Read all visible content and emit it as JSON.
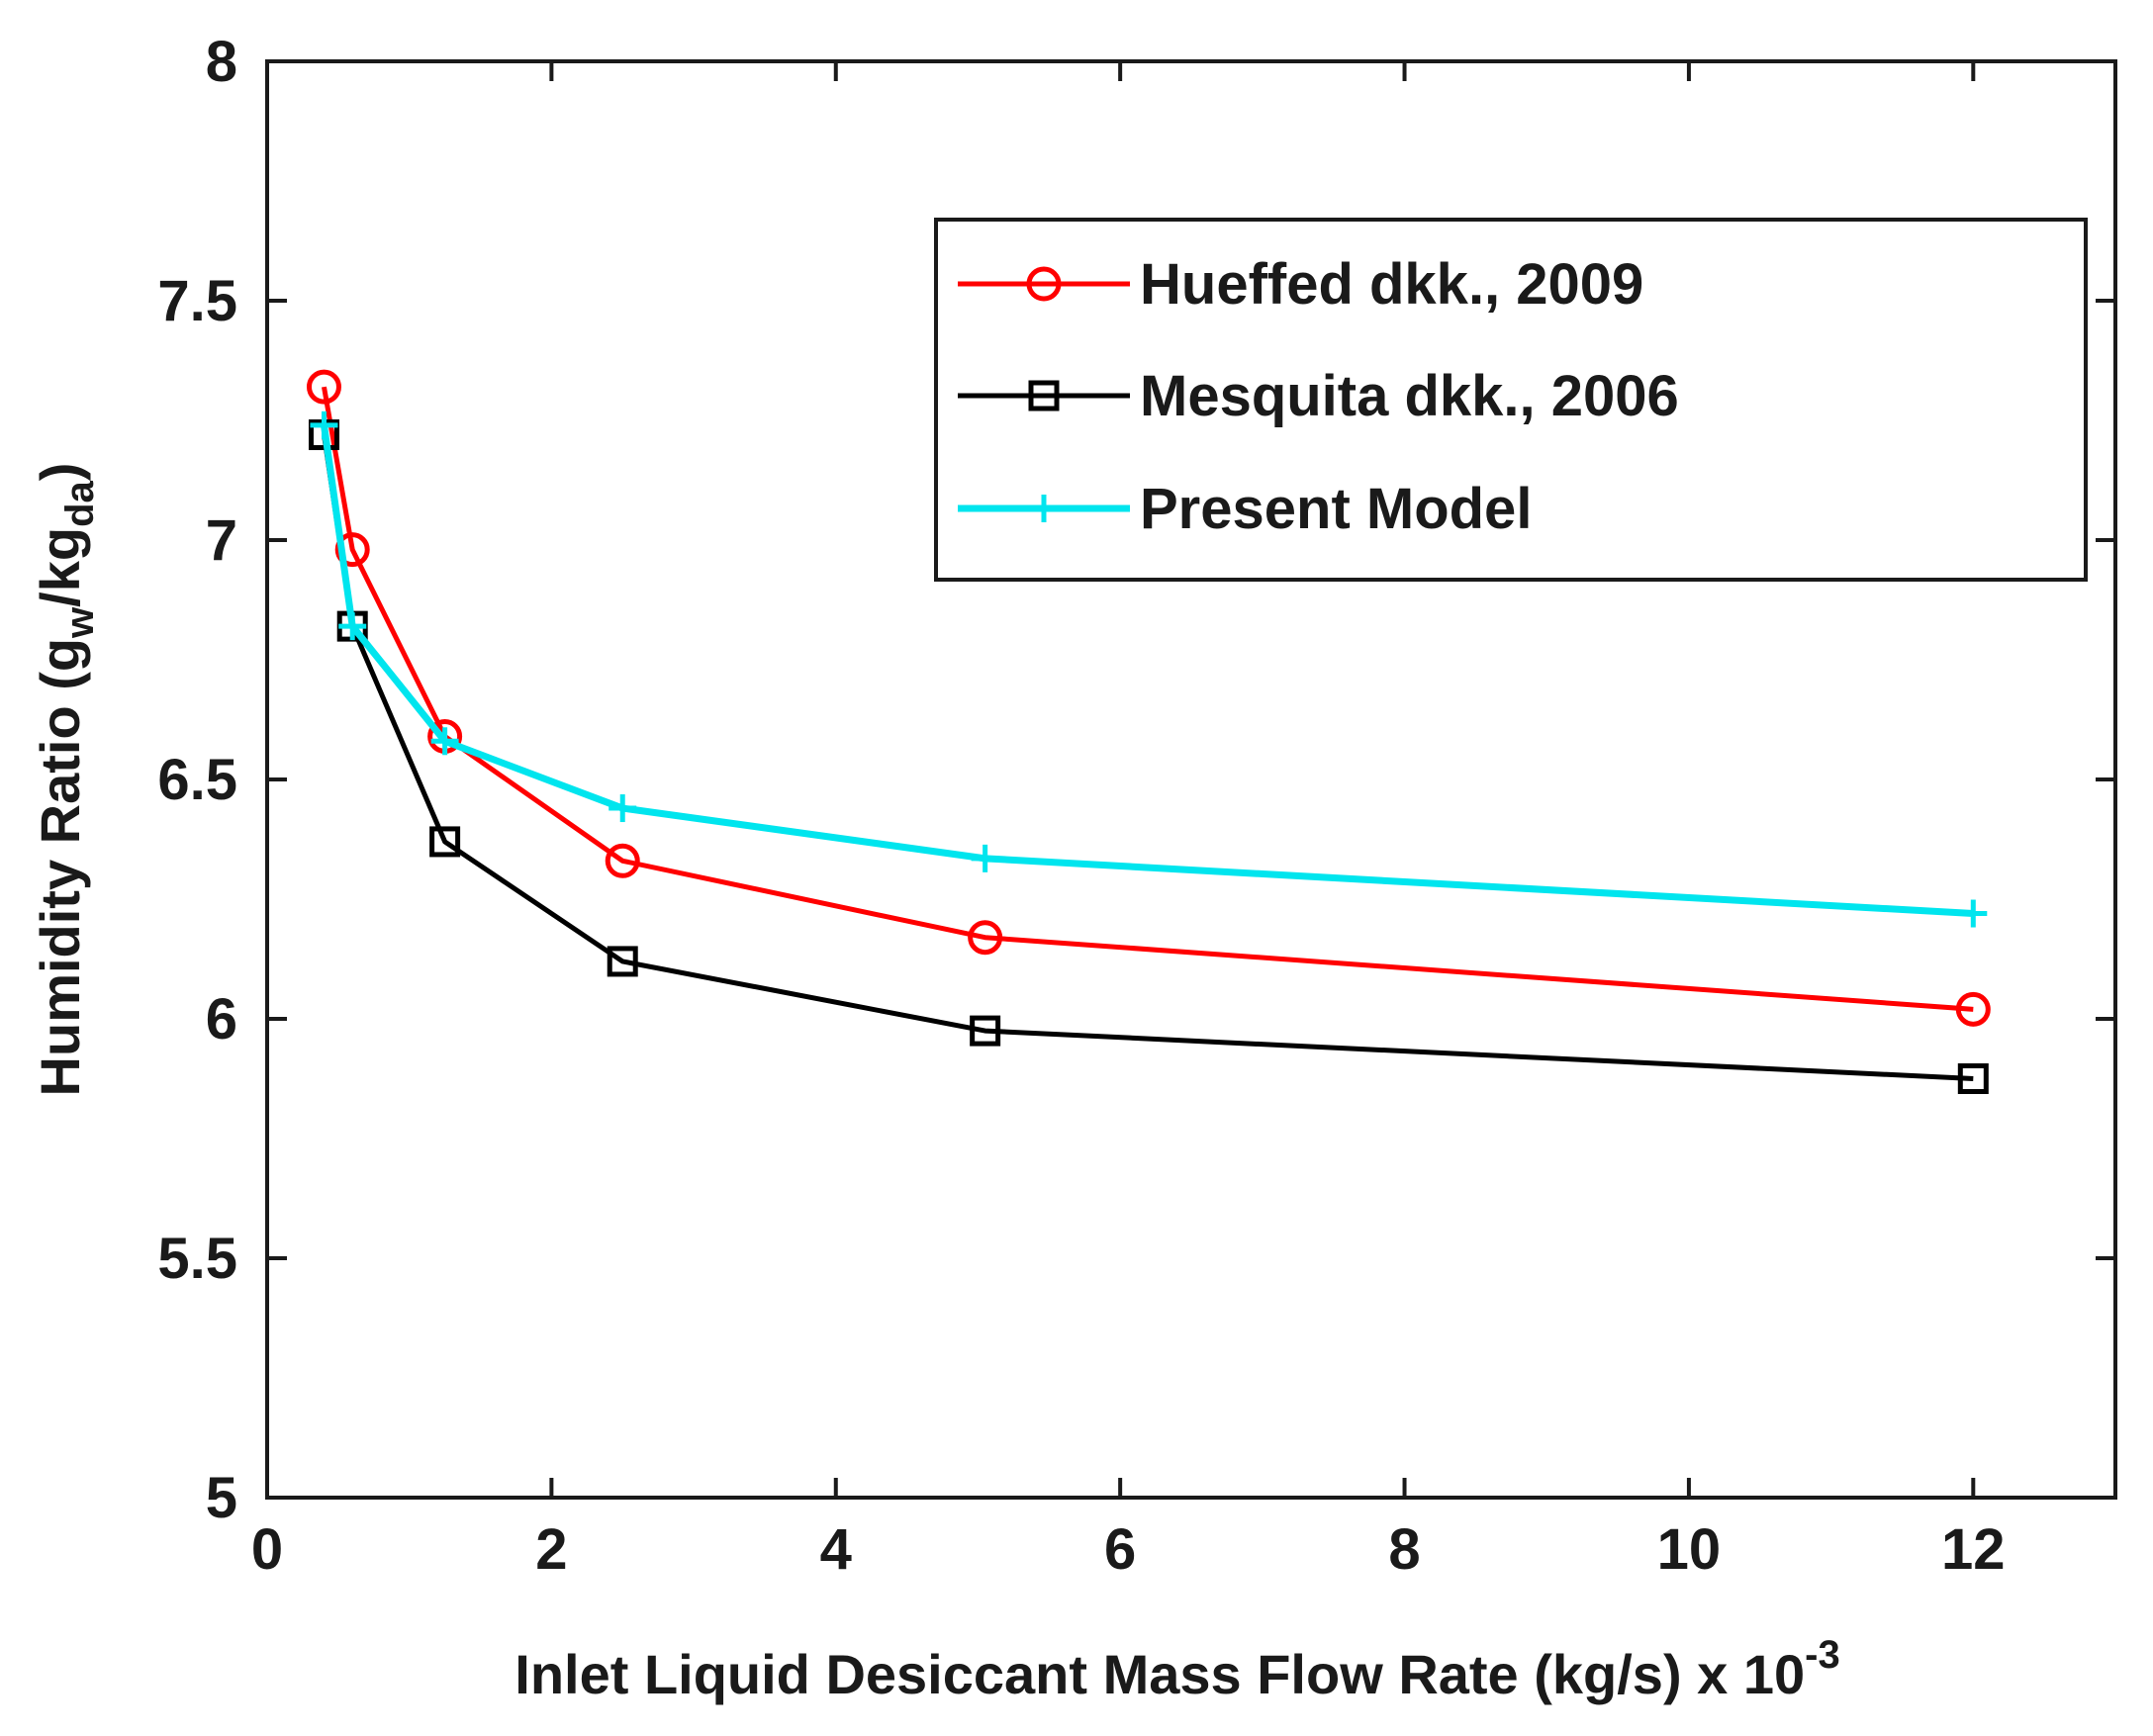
{
  "chart_data": {
    "type": "line",
    "xlabel": "Inlet Liquid Desiccant Mass Flow Rate (kg/s) x 10",
    "xlabel_exponent": "-3",
    "ylabel_prefix": "Humidity Ratio (g",
    "ylabel_sub1": "w",
    "ylabel_mid": "/kg",
    "ylabel_sub2": "da",
    "ylabel_suffix": ")",
    "xlim": [
      0,
      13
    ],
    "ylim": [
      5,
      8
    ],
    "xticks": [
      0,
      2,
      4,
      6,
      8,
      10,
      12
    ],
    "xtick_labels": [
      "0",
      "2",
      "4",
      "6",
      "8",
      "10",
      "12"
    ],
    "yticks": [
      5,
      5.5,
      6,
      6.5,
      7,
      7.5,
      8
    ],
    "ytick_labels": [
      "5",
      "5.5",
      "6",
      "6.5",
      "7",
      "7.5",
      "8"
    ],
    "legend_position": "top-right",
    "series": [
      {
        "name": "Hueffed dkk., 2009",
        "color": "#ff0000",
        "marker": "circle",
        "x": [
          0.4,
          0.6,
          1.25,
          2.5,
          5.05,
          12
        ],
        "y": [
          7.32,
          6.98,
          6.59,
          6.33,
          6.17,
          6.02
        ]
      },
      {
        "name": "Mesquita dkk., 2006",
        "color": "#000000",
        "marker": "square",
        "x": [
          0.4,
          0.6,
          1.25,
          2.5,
          5.05,
          12
        ],
        "y": [
          7.22,
          6.82,
          6.37,
          6.12,
          5.975,
          5.875
        ]
      },
      {
        "name": "Present Model",
        "color": "#00e5ee",
        "marker": "plus",
        "x": [
          0.4,
          0.6,
          1.25,
          2.5,
          5.05,
          12
        ],
        "y": [
          7.24,
          6.82,
          6.58,
          6.44,
          6.335,
          6.22
        ]
      }
    ]
  }
}
